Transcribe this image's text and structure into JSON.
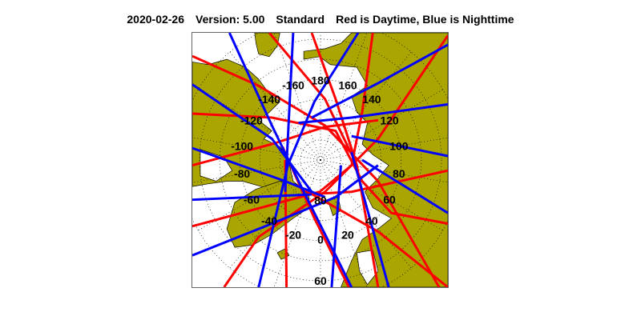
{
  "header": {
    "date": "2020-02-26",
    "version": "Version: 5.00",
    "mode": "Standard",
    "legend_text": "Red is Daytime, Blue is Nighttime"
  },
  "map": {
    "projection": "north polar stereographic",
    "colors": {
      "land": "#aaa500",
      "ocean": "#ffffff",
      "daytime": "#ff0000",
      "nighttime": "#0000ff",
      "grid": "#000000"
    },
    "longitude_labels": [
      "-160",
      "180",
      "160",
      "-140",
      "140",
      "-120",
      "120",
      "-100",
      "100",
      "-80",
      "80",
      "-60",
      "60",
      "-40",
      "40",
      "-20",
      "20",
      "0"
    ],
    "longitude_values": [
      -160,
      180,
      160,
      -140,
      140,
      -120,
      120,
      -100,
      100,
      -80,
      80,
      -60,
      60,
      -40,
      40,
      -20,
      20,
      0
    ],
    "latitude_labels": [
      {
        "text": "80",
        "lat": 80
      },
      {
        "text": "60",
        "lat": 60
      }
    ]
  }
}
